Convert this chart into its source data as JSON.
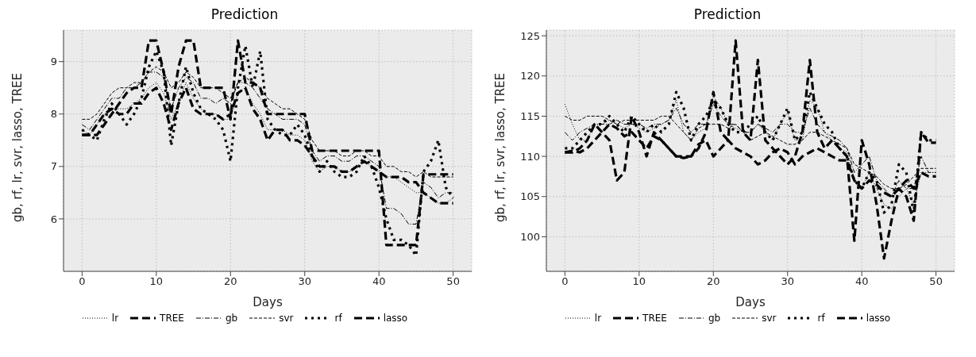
{
  "chart_data": [
    {
      "type": "line",
      "title": "Prediction",
      "xlabel": "Days",
      "ylabel": "gb, rf, lr, svr, lasso, TREE",
      "grid": true,
      "legend": "bottom",
      "marker": "none",
      "x": [
        0,
        1,
        2,
        3,
        4,
        5,
        6,
        7,
        8,
        9,
        10,
        11,
        12,
        13,
        14,
        15,
        16,
        17,
        18,
        19,
        20,
        21,
        22,
        23,
        24,
        25,
        26,
        27,
        28,
        29,
        30,
        31,
        32,
        33,
        34,
        35,
        36,
        37,
        38,
        39,
        40,
        41,
        42,
        43,
        44,
        45,
        46,
        47,
        48,
        49,
        50
      ],
      "xlim": [
        -2.5,
        52.5
      ],
      "xticks": [
        0,
        10,
        20,
        30,
        40,
        50
      ],
      "ylim": [
        5.0,
        9.6
      ],
      "yticks": [
        6,
        7,
        8,
        9
      ],
      "series": [
        {
          "name": "lr",
          "color": "#000000",
          "line_style": "dotted",
          "values": [
            7.7,
            7.6,
            7.8,
            8.0,
            8.1,
            8.1,
            8.1,
            8.2,
            8.3,
            8.5,
            8.6,
            8.4,
            7.9,
            8.2,
            8.6,
            8.3,
            8.1,
            8.0,
            8.0,
            7.9,
            7.9,
            8.4,
            8.5,
            8.2,
            8.0,
            7.7,
            7.7,
            7.7,
            7.6,
            7.6,
            7.5,
            7.1,
            6.9,
            7.0,
            7.0,
            6.9,
            6.9,
            7.0,
            7.1,
            7.0,
            6.9,
            6.8,
            6.8,
            6.7,
            6.6,
            6.5,
            6.5,
            6.4,
            6.3,
            6.3,
            6.4
          ]
        },
        {
          "name": "TREE",
          "color": "#000000",
          "line_style": "dashed",
          "values": [
            7.6,
            7.6,
            7.6,
            7.8,
            8.0,
            8.2,
            8.4,
            8.5,
            8.5,
            9.4,
            9.4,
            8.8,
            8.0,
            8.9,
            9.4,
            9.4,
            8.5,
            8.5,
            8.5,
            8.5,
            7.9,
            9.4,
            8.6,
            8.6,
            8.5,
            8.0,
            8.0,
            8.0,
            8.0,
            8.0,
            8.0,
            7.3,
            7.3,
            7.3,
            7.3,
            7.3,
            7.3,
            7.3,
            7.3,
            7.3,
            7.3,
            5.5,
            5.5,
            5.5,
            5.5,
            5.5,
            6.85,
            6.85,
            6.85,
            6.85,
            6.85
          ]
        },
        {
          "name": "gb",
          "color": "#000000",
          "line_style": "dashed",
          "values": [
            7.8,
            7.7,
            7.9,
            8.1,
            8.3,
            8.3,
            8.5,
            8.5,
            8.6,
            8.8,
            8.8,
            8.7,
            8.1,
            8.5,
            8.7,
            8.6,
            8.3,
            8.3,
            8.2,
            8.3,
            8.2,
            8.6,
            8.6,
            8.5,
            8.3,
            8.1,
            8.0,
            7.9,
            7.9,
            7.9,
            7.8,
            7.3,
            7.1,
            7.2,
            7.2,
            7.1,
            7.1,
            7.2,
            7.2,
            7.1,
            7.0,
            6.2,
            6.2,
            6.1,
            5.9,
            5.9,
            6.7,
            6.6,
            6.4,
            6.5,
            6.5
          ]
        },
        {
          "name": "svr",
          "color": "#000000",
          "line_style": "dashed",
          "values": [
            7.9,
            7.9,
            8.0,
            8.2,
            8.4,
            8.5,
            8.5,
            8.6,
            8.6,
            8.8,
            8.9,
            8.8,
            8.5,
            8.6,
            8.8,
            8.7,
            8.5,
            8.5,
            8.5,
            8.4,
            8.3,
            8.6,
            8.7,
            8.6,
            8.5,
            8.3,
            8.2,
            8.1,
            8.1,
            8.0,
            7.9,
            7.5,
            7.3,
            7.3,
            7.3,
            7.2,
            7.2,
            7.3,
            7.3,
            7.2,
            7.2,
            7.0,
            7.0,
            6.9,
            6.9,
            6.8,
            6.9,
            6.8,
            6.8,
            6.8,
            6.8
          ]
        },
        {
          "name": "rf",
          "color": "#000000",
          "line_style": "dotted",
          "values": [
            7.7,
            7.6,
            7.5,
            7.9,
            8.2,
            8.0,
            7.8,
            8.0,
            8.3,
            8.9,
            9.2,
            8.8,
            7.4,
            8.2,
            8.9,
            8.4,
            8.1,
            8.0,
            7.9,
            7.7,
            7.1,
            8.5,
            9.3,
            8.5,
            9.2,
            7.9,
            7.7,
            7.6,
            7.6,
            7.8,
            7.6,
            7.2,
            6.9,
            7.1,
            6.9,
            6.8,
            6.8,
            6.9,
            7.2,
            7.0,
            6.6,
            6.0,
            5.6,
            5.6,
            5.5,
            5.3,
            6.9,
            7.1,
            7.5,
            6.6,
            6.4
          ]
        },
        {
          "name": "lasso",
          "color": "#000000",
          "line_style": "dashed",
          "values": [
            7.6,
            7.6,
            7.8,
            8.0,
            8.1,
            8.0,
            8.0,
            8.2,
            8.2,
            8.4,
            8.5,
            8.2,
            7.7,
            8.2,
            8.5,
            8.1,
            8.0,
            8.0,
            8.0,
            7.9,
            8.0,
            8.4,
            8.5,
            8.1,
            7.9,
            7.5,
            7.7,
            7.7,
            7.5,
            7.5,
            7.4,
            7.2,
            7.0,
            7.0,
            7.0,
            6.9,
            6.9,
            7.0,
            7.1,
            7.0,
            6.9,
            6.8,
            6.8,
            6.8,
            6.7,
            6.7,
            6.5,
            6.4,
            6.3,
            6.3,
            6.3
          ]
        }
      ]
    },
    {
      "type": "line",
      "title": "Prediction",
      "xlabel": "Days",
      "ylabel": "gb, rf, lr, svr, lasso, TREE",
      "grid": true,
      "legend": "bottom",
      "marker": "none",
      "x": [
        0,
        1,
        2,
        3,
        4,
        5,
        6,
        7,
        8,
        9,
        10,
        11,
        12,
        13,
        14,
        15,
        16,
        17,
        18,
        19,
        20,
        21,
        22,
        23,
        24,
        25,
        26,
        27,
        28,
        29,
        30,
        31,
        32,
        33,
        34,
        35,
        36,
        37,
        38,
        39,
        40,
        41,
        42,
        43,
        44,
        45,
        46,
        47,
        48,
        49,
        50
      ],
      "xlim": [
        -2.5,
        52.5
      ],
      "xticks": [
        0,
        10,
        20,
        30,
        40,
        50
      ],
      "ylim": [
        95.7,
        125.7
      ],
      "yticks": [
        100,
        105,
        110,
        115,
        120,
        125
      ],
      "series": [
        {
          "name": "lr",
          "color": "#000000",
          "line_style": "dotted",
          "values": [
            116.5,
            114,
            112,
            112,
            114,
            114,
            114.5,
            114,
            113.5,
            114,
            113.5,
            113,
            113.5,
            114,
            114.5,
            117,
            113,
            112,
            113,
            113.5,
            117.5,
            116,
            114,
            113.5,
            113,
            113,
            114,
            113,
            112,
            114,
            115.5,
            112,
            112,
            117,
            116,
            113,
            112,
            111,
            110.5,
            107,
            106,
            108,
            106,
            104,
            103.5,
            105,
            106,
            104,
            108,
            108,
            108
          ]
        },
        {
          "name": "TREE",
          "color": "#000000",
          "line_style": "dashed",
          "values": [
            110.5,
            110.5,
            111,
            112,
            114,
            113,
            112,
            107,
            108,
            115,
            113,
            110,
            113,
            112,
            111,
            110,
            110,
            110,
            111,
            113,
            118,
            113,
            112,
            124.4,
            113,
            112,
            122,
            112,
            111,
            110,
            109,
            110,
            113,
            122,
            113,
            111,
            112,
            111,
            110,
            99.5,
            112,
            109,
            104,
            97.3,
            102,
            106,
            105,
            102,
            113,
            111.7,
            111.7
          ]
        },
        {
          "name": "gb",
          "color": "#000000",
          "line_style": "dashed",
          "values": [
            113,
            112,
            113,
            113.5,
            114,
            114,
            114,
            114.5,
            114,
            114,
            114,
            113.5,
            114,
            114,
            114.5,
            116,
            114,
            113,
            114,
            114,
            116.5,
            115,
            114,
            114,
            113,
            113,
            114,
            113.5,
            113,
            114,
            114,
            113,
            113,
            116,
            114,
            113,
            112.5,
            112,
            111,
            108,
            109,
            110,
            107,
            106,
            105,
            107,
            106,
            106,
            110,
            108,
            108
          ]
        },
        {
          "name": "svr",
          "color": "#000000",
          "line_style": "dashed",
          "values": [
            115,
            114.5,
            114.5,
            115,
            115,
            115,
            114.5,
            114,
            114.5,
            114.5,
            114.5,
            114.5,
            114.5,
            115,
            115,
            114,
            113,
            112,
            113.5,
            114,
            114,
            114,
            113.5,
            114,
            113,
            112,
            112.5,
            113,
            112.5,
            112,
            111.5,
            111.5,
            112,
            113,
            113,
            112.5,
            112,
            111.5,
            111,
            109,
            108.5,
            108,
            107.5,
            106.5,
            106,
            106,
            106.5,
            107.5,
            108.5,
            108.5,
            108.5
          ]
        },
        {
          "name": "rf",
          "color": "#000000",
          "line_style": "dotted",
          "values": [
            111,
            111,
            112,
            113,
            114,
            114,
            115,
            114,
            113,
            115,
            114,
            113,
            114,
            113,
            114,
            118,
            116,
            112,
            114,
            115,
            117,
            116,
            114,
            113,
            113,
            114,
            115,
            113,
            112,
            114,
            116,
            112,
            113,
            118,
            116,
            114,
            113,
            111,
            110,
            107,
            106,
            108,
            107,
            103,
            104,
            109,
            108,
            103,
            113,
            112,
            112
          ]
        },
        {
          "name": "lasso",
          "color": "#000000",
          "line_style": "dashed",
          "values": [
            110.5,
            110.7,
            110.5,
            111,
            112,
            113,
            114,
            113.5,
            112.5,
            113,
            112,
            111,
            112.5,
            112,
            111,
            110,
            109.8,
            110,
            111.5,
            112,
            110,
            111,
            112,
            111,
            110.5,
            110,
            109,
            109.5,
            110.5,
            111,
            110.5,
            109,
            110,
            110.5,
            111,
            110.5,
            110,
            109.5,
            109.5,
            107,
            106,
            107,
            106.5,
            105.5,
            105,
            106,
            107,
            106,
            108,
            107.5,
            107.5
          ]
        }
      ]
    }
  ]
}
